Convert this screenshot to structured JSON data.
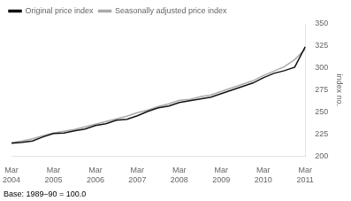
{
  "chart_data": {
    "type": "line",
    "ylabel": "index no.",
    "annotation": "Base: 1989–90 = 100.0",
    "categories": [
      "Mar\n2004",
      null,
      null,
      null,
      "Mar\n2005",
      null,
      null,
      null,
      "Mar\n2006",
      null,
      null,
      null,
      "Mar\n2007",
      null,
      null,
      null,
      "Mar\n2008",
      null,
      null,
      null,
      "Mar\n2009",
      null,
      null,
      null,
      "Mar\n2010",
      null,
      null,
      null,
      "Mar\n2011"
    ],
    "series": [
      {
        "name": "Original price index",
        "color": "#111111",
        "values": [
          215.0,
          216.0,
          217.5,
          222.0,
          226.0,
          226.5,
          229.0,
          231.0,
          235.0,
          237.0,
          241.0,
          242.0,
          246.0,
          251.0,
          255.0,
          257.0,
          261.0,
          263.0,
          265.0,
          267.0,
          271.0,
          275.0,
          279.0,
          283.0,
          289.0,
          294.0,
          297.0,
          301.0,
          324.0
        ]
      },
      {
        "name": "Seasonally adjusted price index",
        "color": "#aaaaaa",
        "values": [
          215.5,
          217.5,
          220.0,
          223.5,
          226.5,
          228.5,
          230.5,
          233.5,
          236.5,
          239.5,
          242.5,
          245.5,
          249.5,
          252.5,
          256.5,
          259.5,
          263.5,
          264.5,
          267.5,
          269.5,
          273.5,
          277.5,
          281.5,
          285.5,
          291.5,
          296.5,
          301.5,
          309.5,
          321.5
        ]
      }
    ],
    "ylim": [
      200,
      350
    ],
    "yticks": [
      200,
      225,
      250,
      275,
      300,
      325,
      350
    ],
    "grid": false,
    "legend": "upper left"
  }
}
